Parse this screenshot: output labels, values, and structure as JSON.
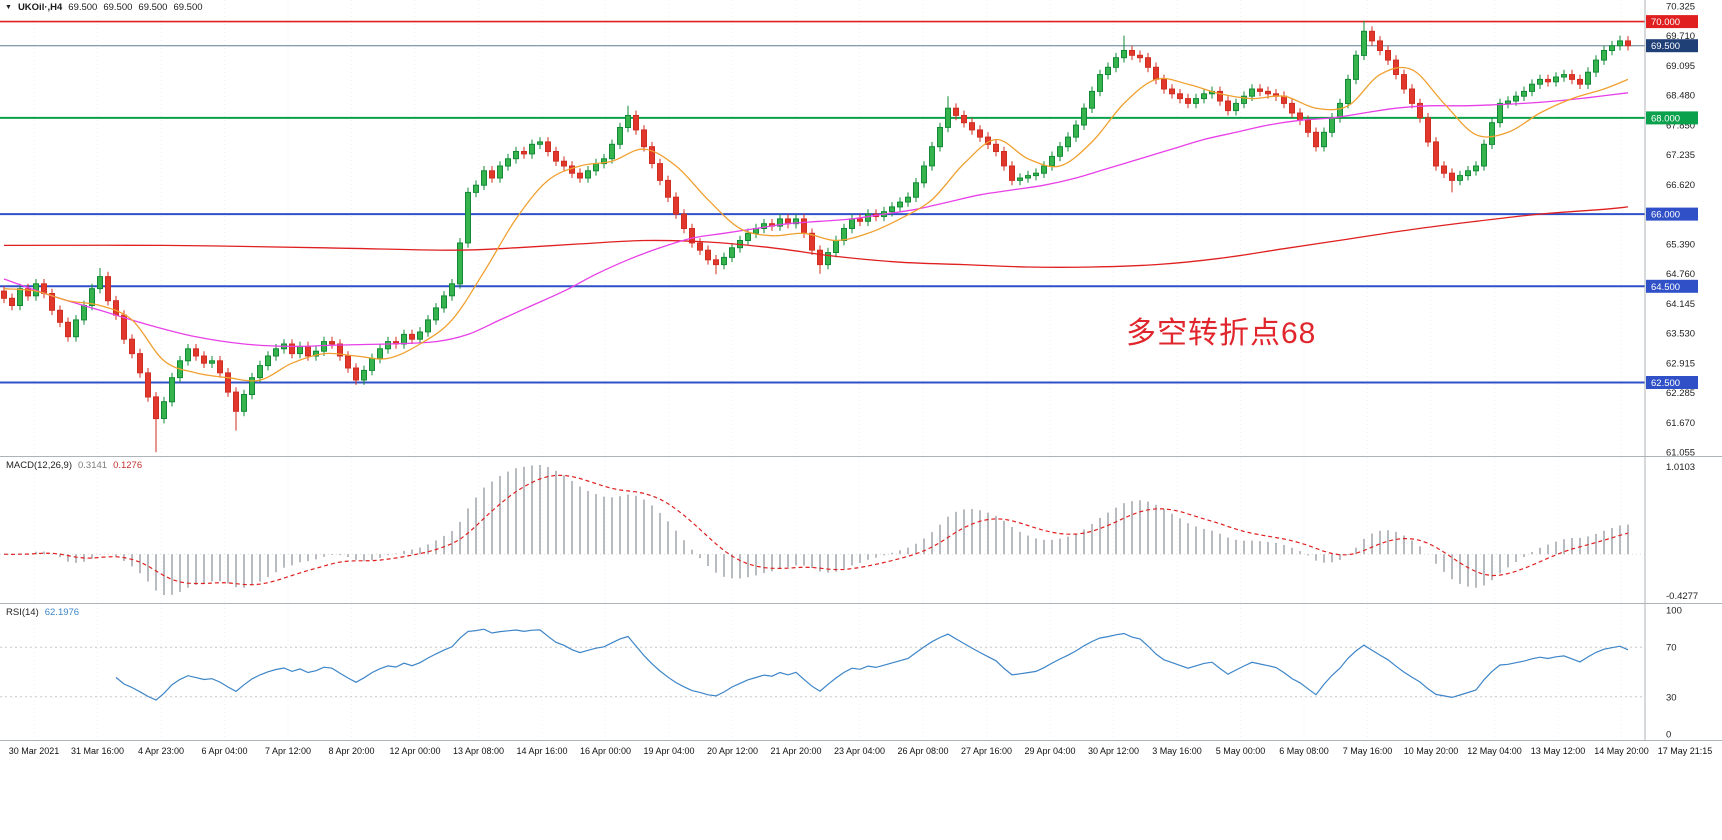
{
  "header": {
    "symbol_tf": "UKOil·,H4",
    "ohlc": [
      "69.500",
      "69.500",
      "69.500",
      "69.500"
    ]
  },
  "indicators": {
    "macd": {
      "title": "MACD(12,26,9)",
      "main_value": "0.3141",
      "signal_value": "0.1276"
    },
    "rsi": {
      "title": "RSI(14)",
      "value": "62.1976"
    }
  },
  "chart_data": {
    "type": "candlestick",
    "symbol": "UKOil",
    "timeframe": "H4",
    "annotation": {
      "text": "多空转折点68",
      "color": "#e0262c"
    },
    "x_labels": [
      "30 Mar 2021",
      "31 Mar 16:00",
      "4 Apr 23:00",
      "6 Apr 04:00",
      "7 Apr 12:00",
      "8 Apr 20:00",
      "12 Apr 00:00",
      "13 Apr 08:00",
      "14 Apr 16:00",
      "16 Apr 00:00",
      "19 Apr 04:00",
      "20 Apr 12:00",
      "21 Apr 20:00",
      "23 Apr 04:00",
      "26 Apr 08:00",
      "27 Apr 16:00",
      "29 Apr 04:00",
      "30 Apr 12:00",
      "3 May 16:00",
      "5 May 00:00",
      "6 May 08:00",
      "7 May 16:00",
      "10 May 20:00",
      "12 May 04:00",
      "13 May 12:00",
      "14 May 20:00",
      "17 May 21:15"
    ],
    "price_axis": {
      "max": 70.325,
      "min": 61.055,
      "labels": [
        "70.325",
        "69.710",
        "69.095",
        "68.480",
        "67.850",
        "67.235",
        "66.620",
        "66.000",
        "65.390",
        "64.760",
        "64.145",
        "63.530",
        "62.915",
        "62.285",
        "61.670",
        "61.055"
      ]
    },
    "colors": {
      "up": "#128a35",
      "up_fill": "#35b44e",
      "down": "#cf2d22",
      "down_fill": "#e2372b"
    },
    "levels": [
      {
        "price": 70.0,
        "label": "70.000",
        "color": "#e02020",
        "width": 1.6
      },
      {
        "price": 68.0,
        "label": "68.000",
        "color": "#0aa14c",
        "width": 2
      },
      {
        "price": 66.0,
        "label": "66.000",
        "color": "#3050c8",
        "width": 2
      },
      {
        "price": 64.5,
        "label": "64.500",
        "color": "#3050c8",
        "width": 2
      },
      {
        "price": 62.5,
        "label": "62.500",
        "color": "#3050c8",
        "width": 2
      }
    ],
    "current_price": {
      "value": 69.5,
      "label": "69.500",
      "line_color": "#5b7f8f",
      "tag_color": "#1f3f77"
    },
    "candles": {
      "first_open": 64.4,
      "default_wick": 0.1,
      "closes": [
        64.25,
        64.1,
        64.45,
        64.3,
        64.55,
        64.35,
        64.0,
        63.75,
        63.45,
        63.8,
        64.1,
        64.45,
        64.7,
        64.2,
        63.9,
        63.4,
        63.1,
        62.7,
        62.2,
        61.75,
        62.1,
        62.6,
        62.95,
        63.2,
        63.05,
        62.9,
        62.95,
        62.7,
        62.3,
        61.9,
        62.25,
        62.6,
        62.85,
        63.05,
        63.2,
        63.3,
        63.1,
        63.25,
        63.05,
        63.15,
        63.35,
        63.3,
        63.05,
        62.8,
        62.55,
        62.75,
        63.0,
        63.2,
        63.35,
        63.3,
        63.5,
        63.4,
        63.55,
        63.8,
        64.05,
        64.3,
        64.55,
        65.4,
        66.45,
        66.6,
        66.9,
        66.75,
        67.0,
        67.15,
        67.3,
        67.25,
        67.45,
        67.5,
        67.3,
        67.1,
        67.0,
        66.85,
        66.75,
        66.9,
        67.05,
        67.15,
        67.45,
        67.8,
        68.05,
        67.75,
        67.4,
        67.05,
        66.7,
        66.35,
        66.0,
        65.7,
        65.4,
        65.25,
        65.05,
        64.95,
        65.1,
        65.3,
        65.45,
        65.6,
        65.7,
        65.8,
        65.75,
        65.9,
        65.8,
        65.9,
        65.6,
        65.25,
        64.95,
        65.2,
        65.45,
        65.7,
        65.9,
        65.85,
        66.0,
        65.95,
        66.05,
        66.15,
        66.25,
        66.35,
        66.65,
        67.0,
        67.4,
        67.8,
        68.2,
        68.05,
        67.9,
        67.75,
        67.6,
        67.45,
        67.3,
        67.0,
        66.7,
        66.75,
        66.8,
        66.85,
        67.0,
        67.2,
        67.4,
        67.6,
        67.85,
        68.2,
        68.55,
        68.9,
        69.05,
        69.25,
        69.4,
        69.3,
        69.25,
        69.05,
        68.8,
        68.6,
        68.5,
        68.4,
        68.3,
        68.4,
        68.5,
        68.55,
        68.35,
        68.15,
        68.3,
        68.45,
        68.6,
        68.55,
        68.5,
        68.45,
        68.3,
        68.1,
        67.95,
        67.7,
        67.4,
        67.7,
        68.0,
        68.3,
        68.8,
        69.3,
        69.8,
        69.6,
        69.4,
        69.2,
        68.9,
        68.6,
        68.3,
        68.0,
        67.5,
        67.0,
        66.85,
        66.7,
        66.8,
        66.9,
        67.0,
        67.45,
        67.9,
        68.3,
        68.35,
        68.45,
        68.55,
        68.7,
        68.8,
        68.75,
        68.85,
        68.9,
        68.8,
        68.7,
        68.95,
        69.2,
        69.4,
        69.5,
        69.6,
        69.5
      ],
      "wick_overrides": {
        "12": {
          "high": 64.88
        },
        "19": {
          "low": 61.05
        },
        "29": {
          "low": 61.5
        },
        "78": {
          "high": 68.25
        },
        "89": {
          "low": 64.75
        },
        "102": {
          "low": 64.76
        },
        "118": {
          "high": 68.45
        },
        "140": {
          "high": 69.71
        },
        "170": {
          "high": 70.02
        },
        "181": {
          "low": 66.45
        },
        "202": {
          "high": 69.71
        }
      }
    },
    "moving_averages": [
      {
        "name": "ma-slow-line",
        "color": "#e02020",
        "points": [
          [
            0,
            65.35
          ],
          [
            20,
            65.35
          ],
          [
            40,
            65.3
          ],
          [
            56,
            65.25
          ],
          [
            64,
            65.3
          ],
          [
            72,
            65.38
          ],
          [
            80,
            65.45
          ],
          [
            88,
            65.42
          ],
          [
            96,
            65.3
          ],
          [
            104,
            65.12
          ],
          [
            112,
            65.0
          ],
          [
            120,
            64.95
          ],
          [
            128,
            64.9
          ],
          [
            136,
            64.9
          ],
          [
            144,
            64.95
          ],
          [
            152,
            65.08
          ],
          [
            160,
            65.28
          ],
          [
            168,
            65.48
          ],
          [
            176,
            65.68
          ],
          [
            184,
            65.85
          ],
          [
            192,
            66.0
          ],
          [
            200,
            66.1
          ],
          [
            203,
            66.15
          ]
        ]
      },
      {
        "name": "ma-mid-line",
        "color": "#e840e8",
        "points": [
          [
            0,
            64.65
          ],
          [
            6,
            64.3
          ],
          [
            12,
            64.0
          ],
          [
            18,
            63.7
          ],
          [
            24,
            63.45
          ],
          [
            30,
            63.3
          ],
          [
            36,
            63.25
          ],
          [
            42,
            63.28
          ],
          [
            48,
            63.3
          ],
          [
            54,
            63.35
          ],
          [
            58,
            63.5
          ],
          [
            62,
            63.8
          ],
          [
            66,
            64.1
          ],
          [
            70,
            64.4
          ],
          [
            74,
            64.75
          ],
          [
            78,
            65.05
          ],
          [
            82,
            65.3
          ],
          [
            86,
            65.5
          ],
          [
            90,
            65.6
          ],
          [
            94,
            65.7
          ],
          [
            98,
            65.8
          ],
          [
            102,
            65.85
          ],
          [
            106,
            65.9
          ],
          [
            110,
            66.0
          ],
          [
            114,
            66.1
          ],
          [
            118,
            66.25
          ],
          [
            122,
            66.4
          ],
          [
            126,
            66.5
          ],
          [
            130,
            66.6
          ],
          [
            134,
            66.75
          ],
          [
            138,
            66.95
          ],
          [
            142,
            67.15
          ],
          [
            146,
            67.35
          ],
          [
            150,
            67.55
          ],
          [
            154,
            67.7
          ],
          [
            158,
            67.85
          ],
          [
            162,
            67.95
          ],
          [
            166,
            68.0
          ],
          [
            170,
            68.1
          ],
          [
            174,
            68.2
          ],
          [
            178,
            68.25
          ],
          [
            182,
            68.25
          ],
          [
            186,
            68.27
          ],
          [
            190,
            68.3
          ],
          [
            194,
            68.35
          ],
          [
            198,
            68.42
          ],
          [
            203,
            68.52
          ]
        ]
      },
      {
        "name": "ma-fast-line",
        "color": "#f0a030",
        "points": [
          [
            0,
            64.45
          ],
          [
            4,
            64.4
          ],
          [
            8,
            64.2
          ],
          [
            12,
            64.1
          ],
          [
            16,
            63.8
          ],
          [
            20,
            62.95
          ],
          [
            24,
            62.7
          ],
          [
            28,
            62.6
          ],
          [
            32,
            62.55
          ],
          [
            36,
            62.9
          ],
          [
            40,
            63.1
          ],
          [
            44,
            63.05
          ],
          [
            48,
            63.0
          ],
          [
            52,
            63.3
          ],
          [
            56,
            63.8
          ],
          [
            60,
            64.8
          ],
          [
            64,
            65.9
          ],
          [
            68,
            66.7
          ],
          [
            72,
            67.0
          ],
          [
            76,
            67.1
          ],
          [
            80,
            67.35
          ],
          [
            84,
            67.0
          ],
          [
            88,
            66.3
          ],
          [
            92,
            65.7
          ],
          [
            96,
            65.55
          ],
          [
            100,
            65.6
          ],
          [
            104,
            65.45
          ],
          [
            108,
            65.6
          ],
          [
            112,
            65.9
          ],
          [
            116,
            66.3
          ],
          [
            120,
            67.05
          ],
          [
            124,
            67.55
          ],
          [
            128,
            67.15
          ],
          [
            132,
            67.0
          ],
          [
            136,
            67.5
          ],
          [
            140,
            68.3
          ],
          [
            144,
            68.8
          ],
          [
            148,
            68.7
          ],
          [
            152,
            68.5
          ],
          [
            156,
            68.4
          ],
          [
            160,
            68.45
          ],
          [
            164,
            68.2
          ],
          [
            168,
            68.25
          ],
          [
            172,
            68.9
          ],
          [
            176,
            69.0
          ],
          [
            180,
            68.3
          ],
          [
            184,
            67.65
          ],
          [
            188,
            67.7
          ],
          [
            192,
            68.1
          ],
          [
            196,
            68.4
          ],
          [
            200,
            68.6
          ],
          [
            203,
            68.8
          ]
        ]
      }
    ],
    "macd": {
      "params": [
        12,
        26,
        9
      ],
      "main": 0.3141,
      "signal": 0.1276,
      "axis_max_label": "1.0103",
      "axis_min_label": "-0.4277",
      "histogram_color": "#b8bcc0",
      "signal_color": "#e02020"
    },
    "rsi": {
      "period": 14,
      "value": 62.1976,
      "levels": [
        70,
        30
      ],
      "axis_labels": [
        "100",
        "70",
        "30",
        "0"
      ],
      "line_color": "#3d85c8"
    }
  }
}
